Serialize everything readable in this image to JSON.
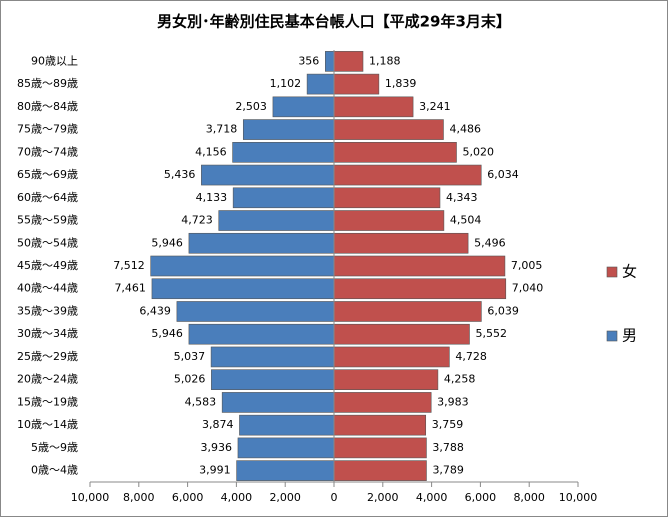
{
  "chart_data": {
    "type": "pyramid",
    "title": "男女別･年齢別住民基本台帳人口【平成29年3月末】",
    "categories": [
      "90歳以上",
      "85歳～89歳",
      "80歳～84歳",
      "75歳～79歳",
      "70歳～74歳",
      "65歳～69歳",
      "60歳～64歳",
      "55歳～59歳",
      "50歳～54歳",
      "45歳～49歳",
      "40歳～44歳",
      "35歳～39歳",
      "30歳～34歳",
      "25歳～29歳",
      "20歳～24歳",
      "15歳～19歳",
      "10歳～14歳",
      "5歳～9歳",
      "0歳～4歳"
    ],
    "series": [
      {
        "name": "女",
        "color": "#c0504d",
        "values": [
          1188,
          1839,
          3241,
          4486,
          5020,
          6034,
          4343,
          4504,
          5496,
          7005,
          7040,
          6039,
          5552,
          4728,
          4258,
          3983,
          3759,
          3788,
          3789
        ],
        "value_labels": [
          "1,188",
          "1,839",
          "3,241",
          "4,486",
          "5,020",
          "6,034",
          "4,343",
          "4,504",
          "5,496",
          "7,005",
          "7,040",
          "6,039",
          "5,552",
          "4,728",
          "4,258",
          "3,983",
          "3,759",
          "3,788",
          "3,789"
        ]
      },
      {
        "name": "男",
        "color": "#4a7ebb",
        "values": [
          -356,
          -1102,
          -2503,
          -3718,
          -4156,
          -5436,
          -4133,
          -4723,
          -5946,
          -7512,
          -7461,
          -6439,
          -5946,
          -5037,
          -5026,
          -4583,
          -3874,
          -3936,
          -3991
        ],
        "value_labels": [
          "356",
          "1,102",
          "2,503",
          "3,718",
          "4,156",
          "5,436",
          "4,133",
          "4,723",
          "5,946",
          "7,512",
          "7,461",
          "6,439",
          "5,946",
          "5,037",
          "5,026",
          "4,583",
          "3,874",
          "3,936",
          "3,991"
        ]
      }
    ],
    "xlim": [
      -10000,
      10000
    ],
    "xticks": [
      {
        "value": -10000,
        "label": "10,000"
      },
      {
        "value": -8000,
        "label": "8,000"
      },
      {
        "value": -6000,
        "label": "6,000"
      },
      {
        "value": -4000,
        "label": "4,000"
      },
      {
        "value": -2000,
        "label": "2,000"
      },
      0,
      {
        "value": 2000,
        "label": "2,000"
      },
      {
        "value": 4000,
        "label": "4,000"
      },
      {
        "value": 6000,
        "label": "6,000"
      },
      {
        "value": 8000,
        "label": "8,000"
      },
      {
        "value": 10000,
        "label": "10,000"
      }
    ],
    "legend": "right"
  }
}
